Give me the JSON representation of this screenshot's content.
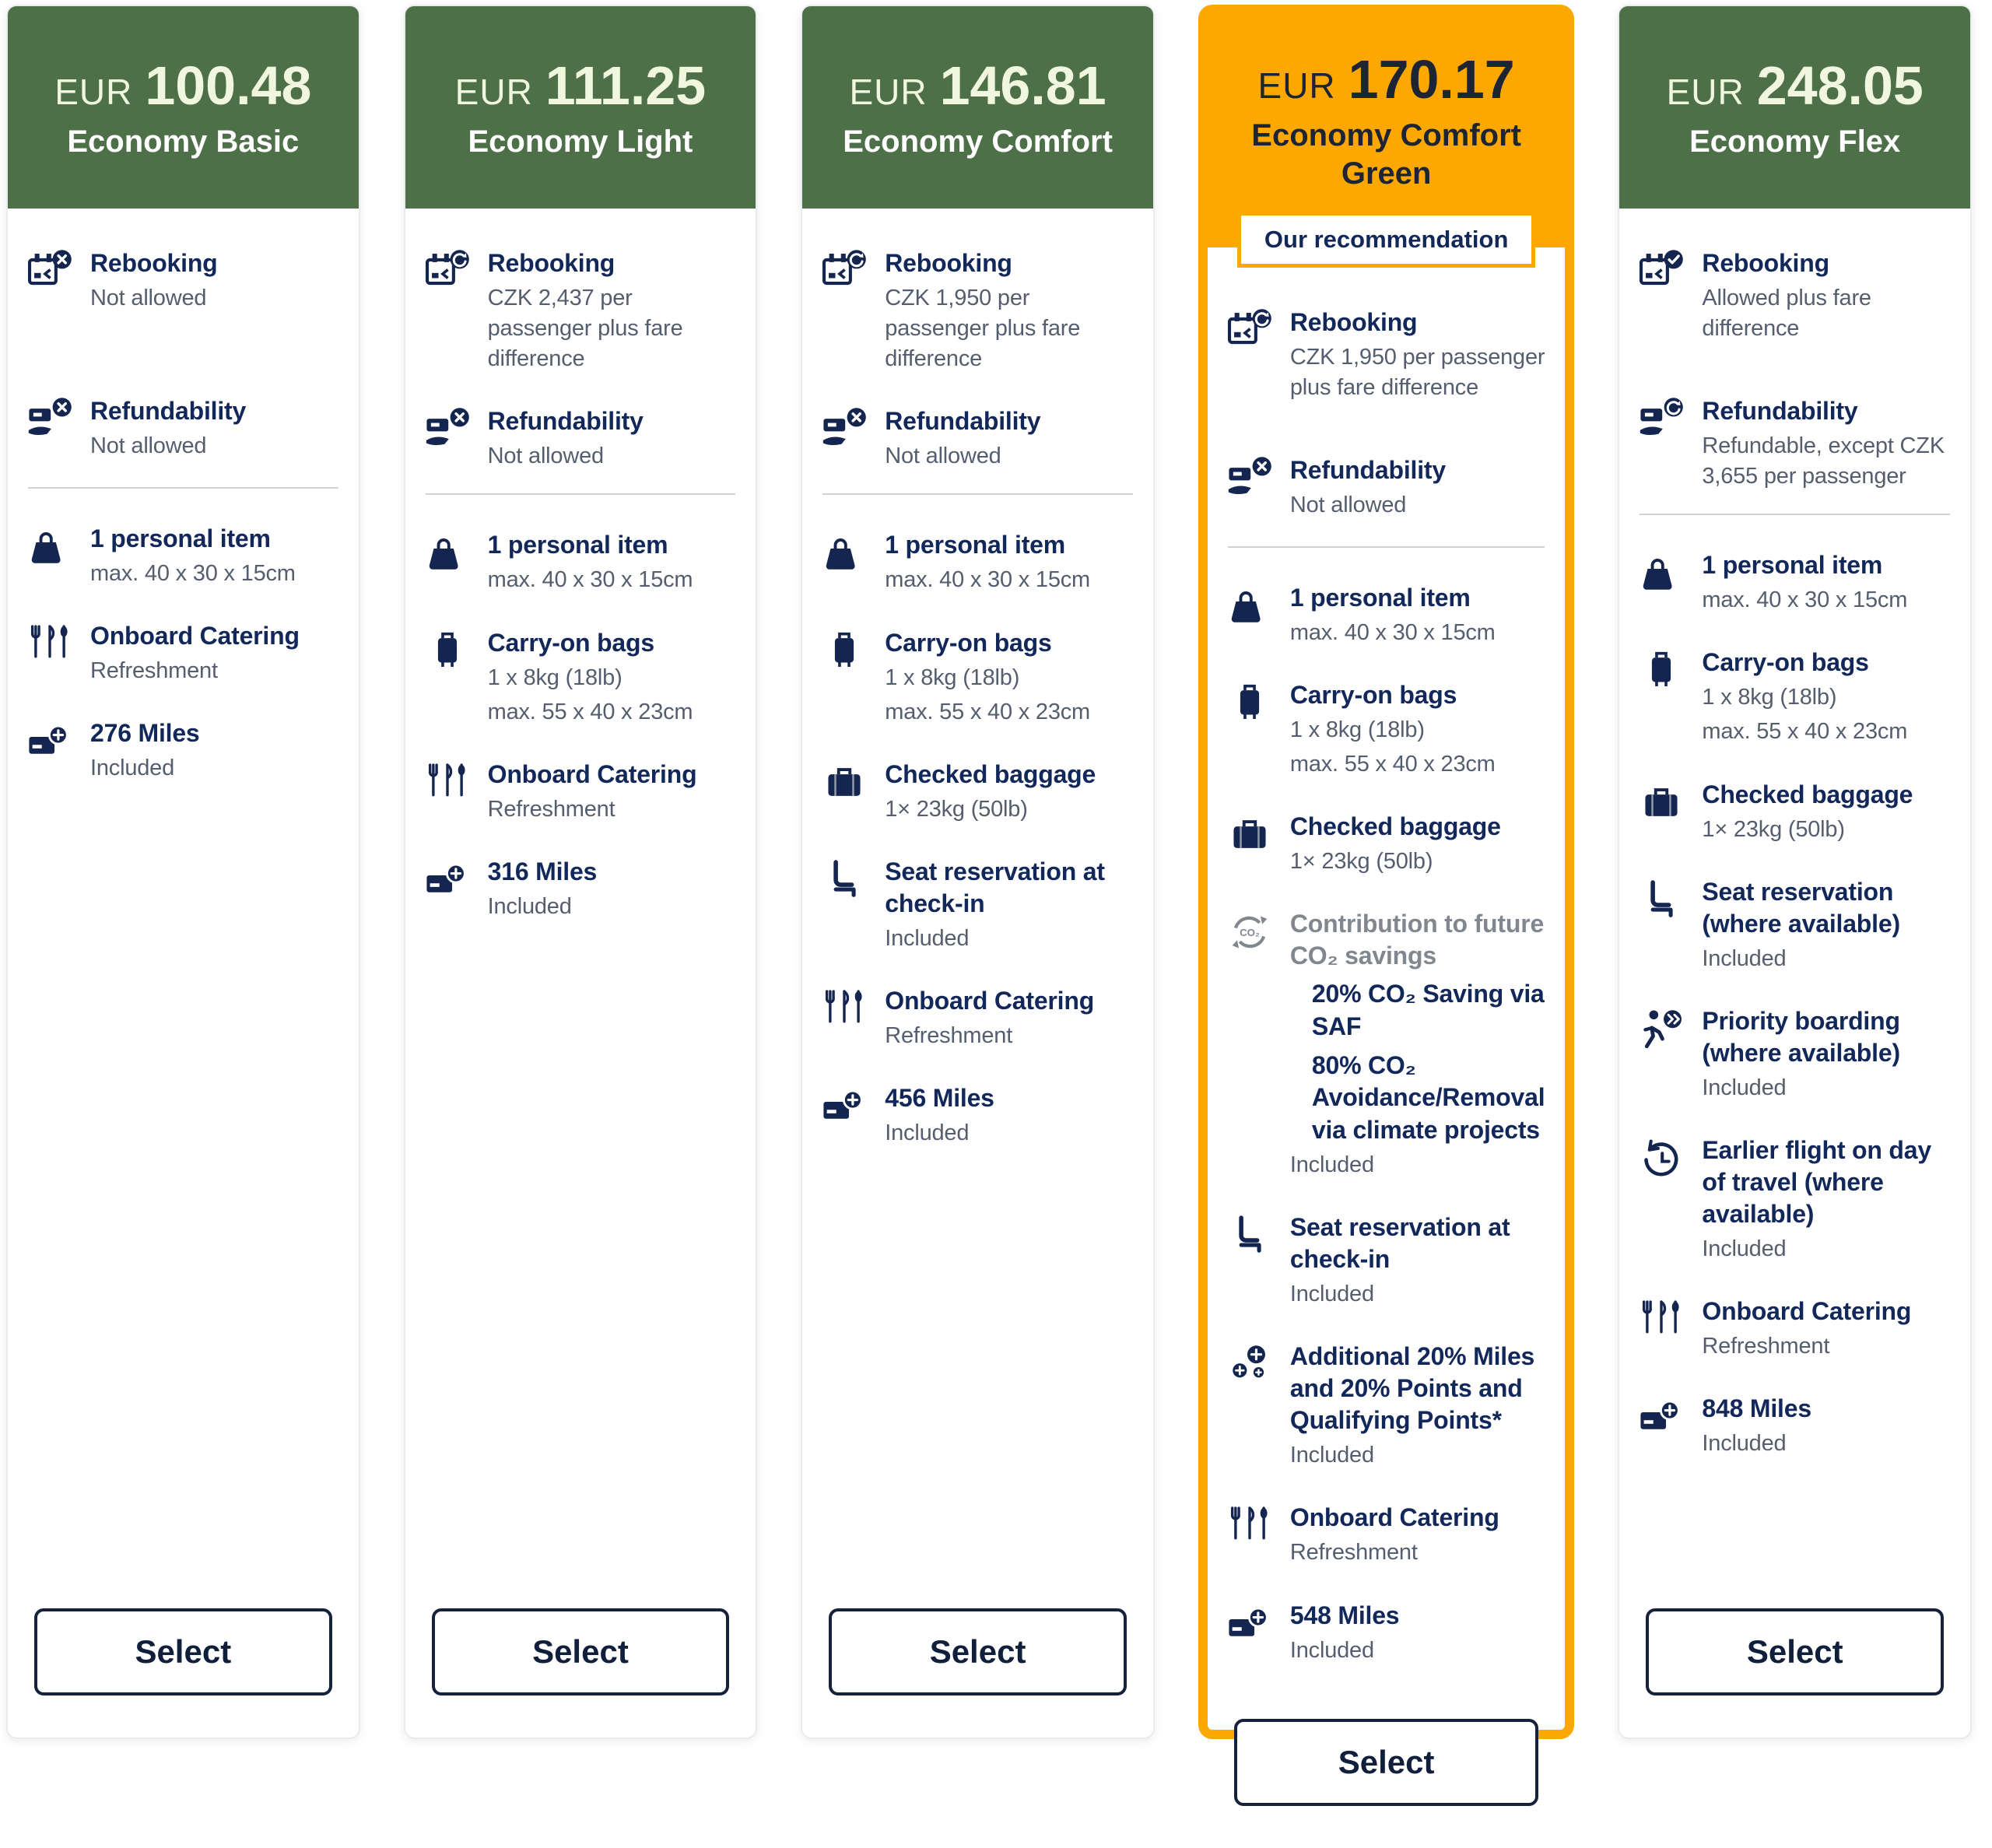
{
  "page": {
    "select_label": "Select",
    "recommendation_badge": "Our recommendation"
  },
  "colors": {
    "header_green": "#4d7048",
    "header_orange": "#fca800",
    "navy": "#12275a",
    "muted_text": "#555e6e",
    "grey_title": "#81878f"
  },
  "fares": [
    {
      "currency": "EUR",
      "price": "100.48",
      "name": "Economy Basic",
      "recommended": false,
      "features_top": [
        {
          "icon": "rebooking-x",
          "title": "Rebooking",
          "lines": [
            "Not allowed"
          ]
        },
        {
          "icon": "refund-x",
          "title": "Refundability",
          "lines": [
            "Not allowed"
          ]
        }
      ],
      "features_bottom": [
        {
          "icon": "personal-item",
          "title": "1 personal item",
          "lines": [
            "max. 40 x 30 x 15cm"
          ]
        },
        {
          "icon": "catering",
          "title": "Onboard Catering",
          "lines": [
            "Refreshment"
          ]
        },
        {
          "icon": "miles",
          "title": "276 Miles",
          "lines": [
            "Included"
          ]
        }
      ]
    },
    {
      "currency": "EUR",
      "price": "111.25",
      "name": "Economy Light",
      "recommended": false,
      "features_top": [
        {
          "icon": "rebooking-refresh",
          "title": "Rebooking",
          "lines": [
            "CZK 2,437 per passenger plus fare difference"
          ]
        },
        {
          "icon": "refund-x",
          "title": "Refundability",
          "lines": [
            "Not allowed"
          ]
        }
      ],
      "features_bottom": [
        {
          "icon": "personal-item",
          "title": "1 personal item",
          "lines": [
            "max. 40 x 30 x 15cm"
          ]
        },
        {
          "icon": "carry-on",
          "title": "Carry-on bags",
          "lines": [
            "1 x 8kg (18lb)",
            "max. 55 x 40 x 23cm"
          ]
        },
        {
          "icon": "catering",
          "title": "Onboard Catering",
          "lines": [
            "Refreshment"
          ]
        },
        {
          "icon": "miles",
          "title": "316 Miles",
          "lines": [
            "Included"
          ]
        }
      ]
    },
    {
      "currency": "EUR",
      "price": "146.81",
      "name": "Economy Comfort",
      "recommended": false,
      "features_top": [
        {
          "icon": "rebooking-refresh",
          "title": "Rebooking",
          "lines": [
            "CZK 1,950 per passenger plus fare difference"
          ]
        },
        {
          "icon": "refund-x",
          "title": "Refundability",
          "lines": [
            "Not allowed"
          ]
        }
      ],
      "features_bottom": [
        {
          "icon": "personal-item",
          "title": "1 personal item",
          "lines": [
            "max. 40 x 30 x 15cm"
          ]
        },
        {
          "icon": "carry-on",
          "title": "Carry-on bags",
          "lines": [
            "1 x 8kg (18lb)",
            "max. 55 x 40 x 23cm"
          ]
        },
        {
          "icon": "checked-bag",
          "title": "Checked baggage",
          "lines": [
            "1× 23kg (50lb)"
          ]
        },
        {
          "icon": "seat",
          "title": "Seat reservation at check-in",
          "lines": [
            "Included"
          ]
        },
        {
          "icon": "catering",
          "title": "Onboard Catering",
          "lines": [
            "Refreshment"
          ]
        },
        {
          "icon": "miles",
          "title": "456 Miles",
          "lines": [
            "Included"
          ]
        }
      ]
    },
    {
      "currency": "EUR",
      "price": "170.17",
      "name": "Economy Comfort Green",
      "recommended": true,
      "features_top": [
        {
          "icon": "rebooking-refresh",
          "title": "Rebooking",
          "lines": [
            "CZK 1,950 per passenger plus fare difference"
          ]
        },
        {
          "icon": "refund-x",
          "title": "Refundability",
          "lines": [
            "Not allowed"
          ]
        }
      ],
      "features_bottom": [
        {
          "icon": "personal-item",
          "title": "1 personal item",
          "lines": [
            "max. 40 x 30 x 15cm"
          ]
        },
        {
          "icon": "carry-on",
          "title": "Carry-on bags",
          "lines": [
            "1 x 8kg (18lb)",
            "max. 55 x 40 x 23cm"
          ]
        },
        {
          "icon": "checked-bag",
          "title": "Checked baggage",
          "lines": [
            "1× 23kg (50lb)"
          ]
        },
        {
          "icon": "co2",
          "title": "Contribution to future CO₂ savings",
          "muted": true,
          "bold_lines": [
            "20% CO₂ Saving via SAF",
            "80% CO₂ Avoidance/Removal via climate projects"
          ],
          "lines": [
            "Included"
          ]
        },
        {
          "icon": "seat",
          "title": "Seat reservation at check-in",
          "lines": [
            "Included"
          ]
        },
        {
          "icon": "points",
          "title": "Additional 20% Miles and 20% Points and Qualifying Points*",
          "lines": [
            "Included"
          ]
        },
        {
          "icon": "catering",
          "title": "Onboard Catering",
          "lines": [
            "Refreshment"
          ]
        },
        {
          "icon": "miles",
          "title": "548 Miles",
          "lines": [
            "Included"
          ]
        }
      ]
    },
    {
      "currency": "EUR",
      "price": "248.05",
      "name": "Economy Flex",
      "recommended": false,
      "features_top": [
        {
          "icon": "rebooking-check",
          "title": "Rebooking",
          "lines": [
            "Allowed plus fare difference"
          ]
        },
        {
          "icon": "refund-refresh",
          "title": "Refundability",
          "lines": [
            "Refundable, except CZK 3,655 per passenger"
          ]
        }
      ],
      "features_bottom": [
        {
          "icon": "personal-item",
          "title": "1 personal item",
          "lines": [
            "max. 40 x 30 x 15cm"
          ]
        },
        {
          "icon": "carry-on",
          "title": "Carry-on bags",
          "lines": [
            "1 x 8kg (18lb)",
            "max. 55 x 40 x 23cm"
          ]
        },
        {
          "icon": "checked-bag",
          "title": "Checked baggage",
          "lines": [
            "1× 23kg (50lb)"
          ]
        },
        {
          "icon": "seat",
          "title": "Seat reservation (where available)",
          "lines": [
            "Included"
          ]
        },
        {
          "icon": "priority",
          "title": "Priority boarding (where available)",
          "lines": [
            "Included"
          ]
        },
        {
          "icon": "earlier-flight",
          "title": "Earlier flight on day of travel (where available)",
          "lines": [
            "Included"
          ]
        },
        {
          "icon": "catering",
          "title": "Onboard Catering",
          "lines": [
            "Refreshment"
          ]
        },
        {
          "icon": "miles",
          "title": "848 Miles",
          "lines": [
            "Included"
          ]
        }
      ]
    }
  ]
}
